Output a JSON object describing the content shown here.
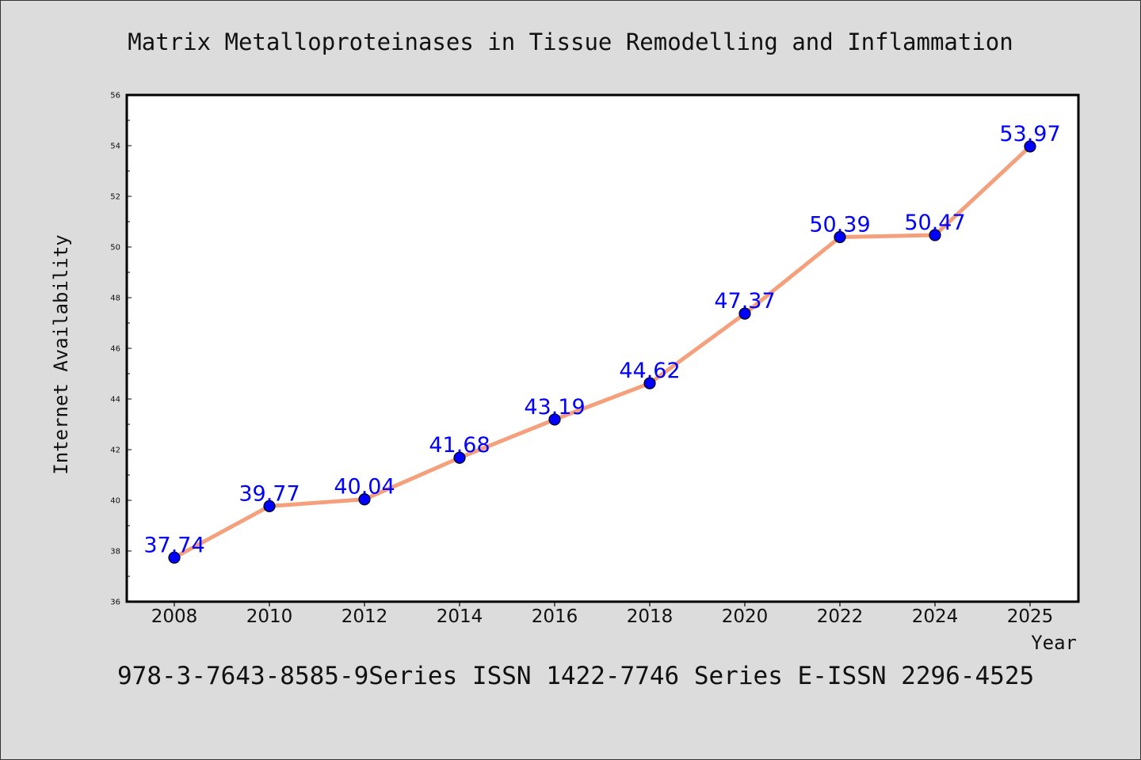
{
  "chart_data": {
    "type": "line",
    "title": "Matrix Metalloproteinases in Tissue Remodelling and Inflammation",
    "xlabel": "Year",
    "ylabel": "Internet Availability",
    "footer": "978-3-7643-8585-9Series ISSN 1422-7746 Series E-ISSN 2296-4525",
    "categories": [
      "2008",
      "2010",
      "2012",
      "2014",
      "2016",
      "2018",
      "2020",
      "2022",
      "2024",
      "2025"
    ],
    "series": [
      {
        "values": [
          37.74,
          39.77,
          40.04,
          41.68,
          43.19,
          44.62,
          47.37,
          50.39,
          50.47,
          53.97
        ]
      }
    ],
    "data_labels": [
      "37.74",
      "39.77",
      "40.04",
      "41.68",
      "43.19",
      "44.62",
      "47.37",
      "50.39",
      "50.47",
      "53.97"
    ],
    "ylim": [
      36,
      56
    ],
    "yticks": [
      "36",
      "38",
      "40",
      "42",
      "44",
      "46",
      "48",
      "50",
      "52",
      "54",
      "56"
    ],
    "grid": false,
    "legend": "none",
    "colors": {
      "line": "#f4a07c",
      "marker": "#0000ff",
      "label": "#0000ff",
      "background": "#dcdcdc",
      "plot_background": "#ffffff"
    }
  }
}
